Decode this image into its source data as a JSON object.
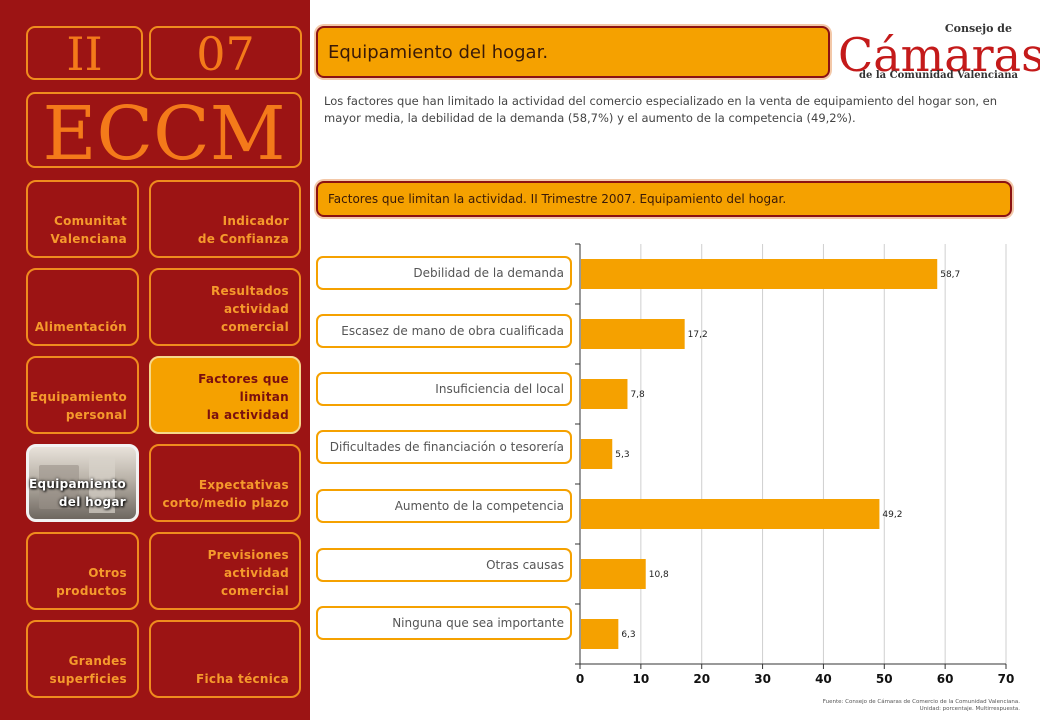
{
  "sidebar": {
    "section_number": "II",
    "issue_number": "07",
    "brand": "ECCM",
    "items": [
      {
        "label": "Comunitat\nValenciana"
      },
      {
        "label": "Indicador\nde Confianza"
      },
      {
        "label": "Alimentación"
      },
      {
        "label": "Resultados actividad\ncomercial"
      },
      {
        "label": "Equipamiento\npersonal"
      },
      {
        "label": "Factores que limitan\nla actividad"
      },
      {
        "label": "Equipamiento\ndel hogar"
      },
      {
        "label": "Expectativas\ncorto/medio plazo"
      },
      {
        "label": "Otros\nproductos"
      },
      {
        "label": "Previsiones actividad\ncomercial"
      },
      {
        "label": "Grandes\nsuperficies"
      },
      {
        "label": "Ficha técnica"
      }
    ]
  },
  "header": {
    "title": "Equipamiento del hogar.",
    "description": "Los factores que han limitado la actividad del comercio especializado en la venta de equipamiento del hogar son, en mayor media, la debilidad de la demanda (58,7%) y el aumento de la competencia (49,2%).",
    "logo_top": "Consejo de",
    "logo_mark": "Cámaras",
    "logo_bottom": "de la Comunidad Valenciana"
  },
  "subtitle": "Factores que limitan la actividad. II Trimestre 2007. Equipamiento del hogar.",
  "chart_data": {
    "type": "bar",
    "orientation": "horizontal",
    "categories": [
      "Debilidad de la demanda",
      "Escasez de mano de obra cualificada",
      "Insuficiencia del local",
      "Dificultades de financiación o tesorería",
      "Aumento de la competencia",
      "Otras causas",
      "Ninguna que sea importante"
    ],
    "values": [
      58.7,
      17.2,
      7.8,
      5.3,
      49.2,
      10.8,
      6.3
    ],
    "value_labels": [
      "58,7",
      "17,2",
      "7,8",
      "5,3",
      "49,2",
      "10,8",
      "6,3"
    ],
    "xlim": [
      0,
      70
    ],
    "xticks": [
      "0",
      "10",
      "20",
      "30",
      "40",
      "50",
      "60",
      "70"
    ],
    "bar_color": "#f5a100",
    "grid": true
  },
  "source": {
    "line1": "Fuente: Consejo de Cámaras de Comercio de la Comunidad Valenciana.",
    "line2": "Unidad: porcentaje. Multirrespuesta."
  },
  "colors": {
    "sidebar_bg": "#9c1414",
    "accent": "#f5a100",
    "nav_text": "#f59a2c"
  }
}
